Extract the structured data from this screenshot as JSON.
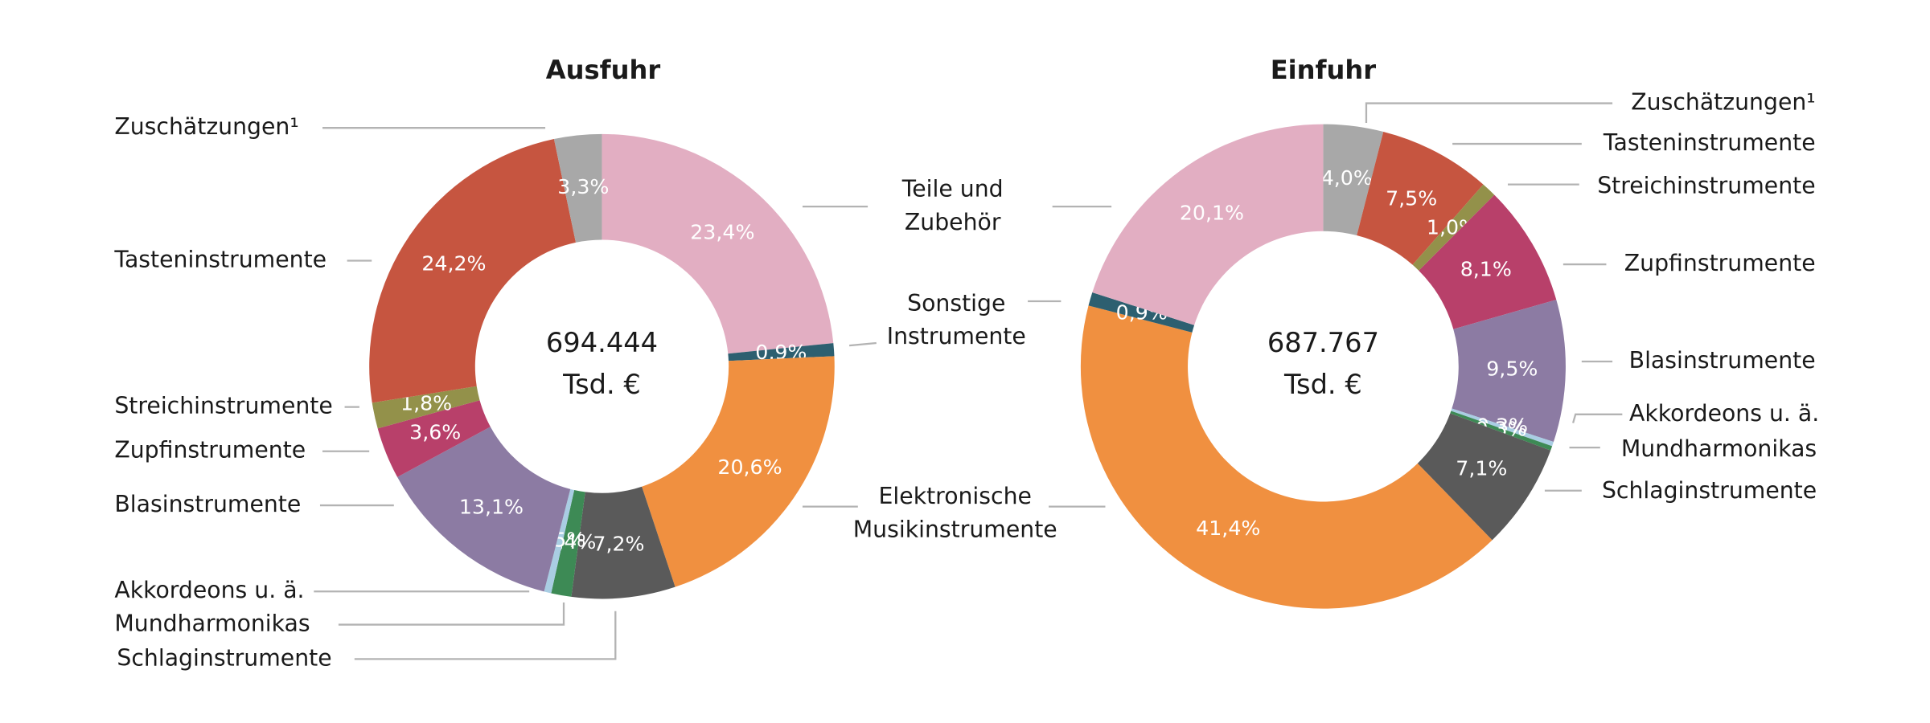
{
  "chart_data": [
    {
      "type": "donut",
      "title": "Ausfuhr",
      "center_text": [
        "694.444",
        "Tsd. €"
      ],
      "categories": [
        "Teile und\nZubehör",
        "Sonstige\nInstrumente",
        "Elektronische\nMusikinstrumente",
        "Schlaginstrumente",
        "Mundharmonikas",
        "Akkordeons u. ä.",
        "Blasinstrumente",
        "Zupfinstrumente",
        "Streichinstrumente",
        "Tasteninstrumente",
        "Zuschätzungen¹"
      ],
      "values": [
        23.4,
        0.9,
        20.6,
        7.2,
        1.4,
        0.5,
        13.1,
        3.6,
        1.8,
        24.2,
        3.3
      ],
      "value_labels": [
        "23,4%",
        "0,9%",
        "20,6%",
        "7,2%",
        "1,4%",
        "0,5%",
        "13,1%",
        "3,6%",
        "1,8%",
        "24,2%",
        "3,3%"
      ],
      "colors": [
        "#e2aec2",
        "#2d5f70",
        "#f09040",
        "#5a5a5a",
        "#3d8a55",
        "#a9cde3",
        "#8c7ba3",
        "#b8406a",
        "#93914a",
        "#c65540",
        "#a8a8a8"
      ]
    },
    {
      "type": "donut",
      "title": "Einfuhr",
      "center_text": [
        "687.767",
        "Tsd. €"
      ],
      "categories": [
        "Zuschätzungen¹",
        "Tasteninstrumente",
        "Streichinstrumente",
        "Zupfinstrumente",
        "Blasinstrumente",
        "Akkordeons u. ä.",
        "Mundharmonikas",
        "Schlaginstrumente",
        null,
        null,
        null
      ],
      "values": [
        4.0,
        7.5,
        1.0,
        8.1,
        9.5,
        0.3,
        0.3,
        7.1,
        41.4,
        0.9,
        20.1
      ],
      "value_labels": [
        "4,0%",
        "7,5%",
        "1,0%",
        "8,1%",
        "9,5%",
        "0,3%",
        "0,3%",
        "7,1%",
        "41,4%",
        "0,9%",
        "20,1%"
      ],
      "colors": [
        "#a8a8a8",
        "#c65540",
        "#93914a",
        "#b8406a",
        "#8c7ba3",
        "#a9cde3",
        "#3d8a55",
        "#5a5a5a",
        "#f09040",
        "#2d5f70",
        "#e2aec2"
      ]
    }
  ]
}
